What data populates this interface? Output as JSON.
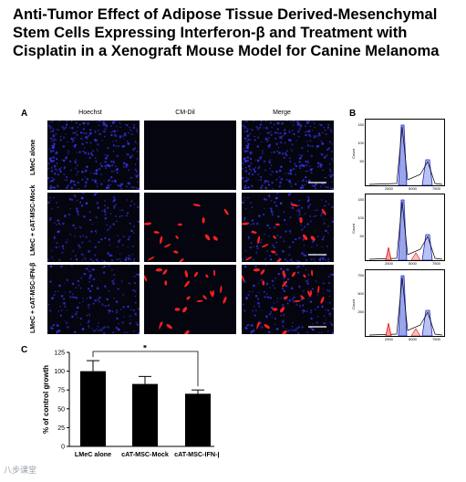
{
  "title": "Anti-Tumor Effect of Adipose Tissue Derived-Mesenchymal Stem Cells Expressing Interferon-β and Treatment with Cisplatin in a Xenograft Mouse Model for Canine Melanoma",
  "panels": {
    "a": "A",
    "b": "B",
    "c": "C"
  },
  "columns": [
    "Hoechst",
    "CM-Dil",
    "Merge"
  ],
  "rows": [
    "LMeC alone",
    "LMeC + cAT-MSC-Mock",
    "LMeC + cAT-MSC-IFN-β"
  ],
  "flow": {
    "ylabel": "Count",
    "plots": [
      {
        "yticks": [
          "150",
          "100",
          "50"
        ],
        "xticks": [
          "2500",
          "5000",
          "7500"
        ]
      },
      {
        "yticks": [
          "150",
          "100",
          "50"
        ],
        "xticks": [
          "2500",
          "5000",
          "7500"
        ]
      },
      {
        "yticks": [
          "750",
          "500",
          "250"
        ],
        "xticks": [
          "2500",
          "5000",
          "7500"
        ]
      }
    ]
  },
  "significance": "*",
  "watermark": "八步课堂",
  "colors": {
    "nuclei": "#3434e8",
    "dil": "#ff2020",
    "bar": "#000000"
  },
  "chart_data": {
    "type": "bar",
    "categories": [
      "LMeC alone",
      "cAT-MSC-Mock",
      "cAT-MSC-IFN-β"
    ],
    "values": [
      100,
      83,
      70
    ],
    "errors": [
      14,
      10,
      5
    ],
    "ylabel": "% of control growth",
    "ylim": [
      0,
      125
    ],
    "yticks": [
      0,
      25,
      50,
      75,
      100,
      125
    ],
    "grid": false
  }
}
